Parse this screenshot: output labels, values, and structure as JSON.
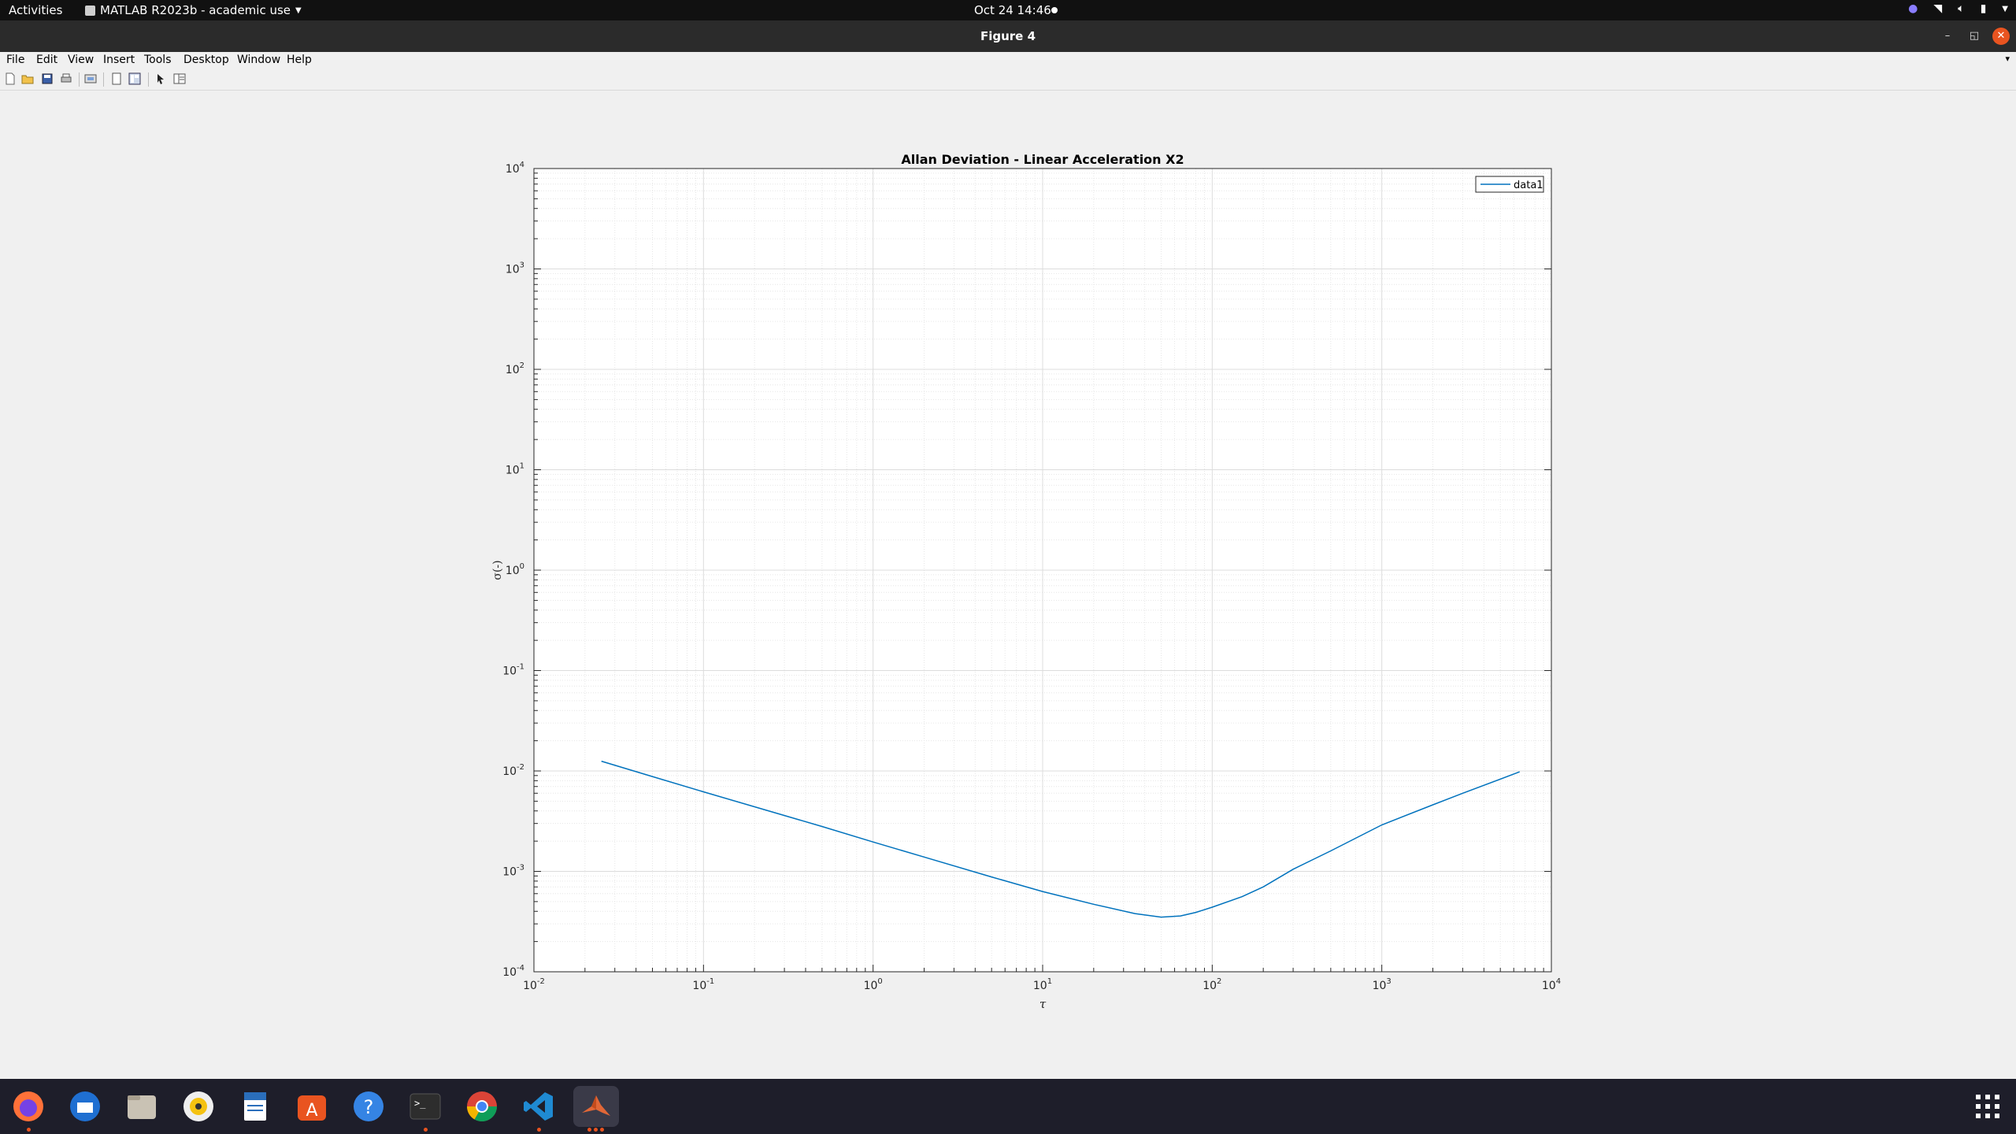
{
  "topbar": {
    "activities": "Activities",
    "app_menu": "MATLAB R2023b - academic use",
    "clock": "Oct 24  14:46"
  },
  "window": {
    "title": "Figure 4"
  },
  "menu": [
    "File",
    "Edit",
    "View",
    "Insert",
    "Tools",
    "Desktop",
    "Window",
    "Help"
  ],
  "toolbar": {
    "icons": [
      "new-figure-icon",
      "open-icon",
      "save-icon",
      "print-icon",
      "link-plot-icon",
      "hide-plot-tools-icon",
      "show-plot-tools-icon",
      "edit-plot-icon",
      "open-property-inspector-icon"
    ]
  },
  "dock": {
    "apps": [
      "firefox-icon",
      "thunderbird-icon",
      "files-icon",
      "rhythmbox-icon",
      "libreoffice-writer-icon",
      "app-center-icon",
      "help-icon",
      "terminal-icon",
      "chrome-icon",
      "vscode-icon",
      "matlab-icon",
      "show-apps-icon"
    ]
  },
  "colors": {
    "line": "#0072bd",
    "topbar": "#111111",
    "titlebar": "#2b2b2b",
    "close": "#e95420"
  },
  "chart_data": {
    "type": "line",
    "title": "Allan Deviation - Linear Acceleration X2",
    "xlabel": "τ",
    "ylabel": "σ(-)",
    "xscale": "log",
    "yscale": "log",
    "xlim": [
      0.01,
      10000
    ],
    "ylim": [
      0.0001,
      10000
    ],
    "xticks": [
      "10^-2",
      "10^-1",
      "10^0",
      "10^1",
      "10^2",
      "10^3",
      "10^4"
    ],
    "yticks": [
      "10^-4",
      "10^-3",
      "10^-2",
      "10^-1",
      "10^0",
      "10^1",
      "10^2",
      "10^3",
      "10^4"
    ],
    "grid": true,
    "minor_grid": true,
    "legend": "top-right",
    "series": [
      {
        "name": "data1",
        "x": [
          0.025,
          0.05,
          0.1,
          0.2,
          0.5,
          1,
          2,
          5,
          10,
          20,
          35,
          50,
          65,
          80,
          100,
          150,
          200,
          300,
          500,
          1000,
          2000,
          3000,
          6500
        ],
        "y": [
          0.0125,
          0.0088,
          0.0062,
          0.0044,
          0.0028,
          0.00196,
          0.00139,
          0.00088,
          0.00063,
          0.00047,
          0.00038,
          0.00035,
          0.00036,
          0.00039,
          0.00044,
          0.00056,
          0.0007,
          0.00105,
          0.0016,
          0.0029,
          0.0046,
          0.006,
          0.0098
        ]
      }
    ]
  }
}
